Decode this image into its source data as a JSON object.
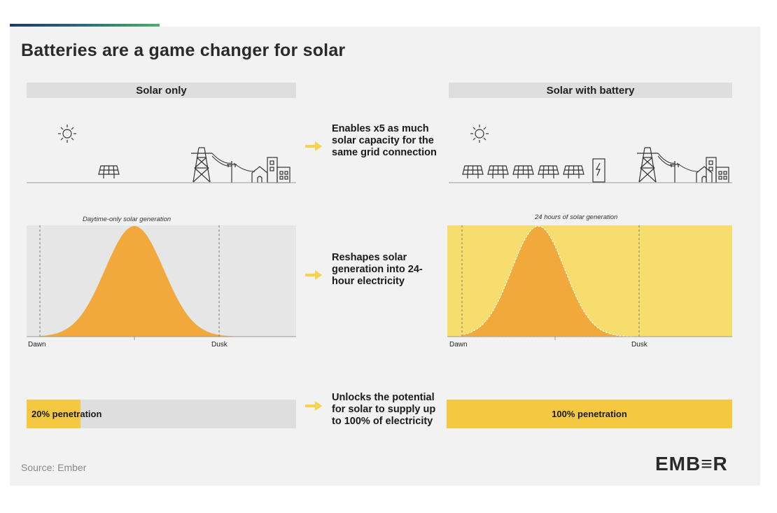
{
  "title": "Batteries are a game changer for solar",
  "columns": {
    "left": "Solar only",
    "right": "Solar with battery"
  },
  "benefits": [
    "Enables x5 as much solar capacity for the same grid connection",
    "Reshapes solar generation into 24-hour electricity",
    "Unlocks the potential for solar to supply up to 100% of electricity"
  ],
  "charts": {
    "left": {
      "caption": "Daytime-only solar generation",
      "x_labels": [
        "Dawn",
        "Dusk"
      ]
    },
    "right": {
      "caption": "24 hours of solar generation",
      "x_labels": [
        "Dawn",
        "Dusk"
      ]
    }
  },
  "penetration": {
    "left": {
      "label": "20% penetration",
      "value": 0.2
    },
    "right": {
      "label": "100% penetration",
      "value": 1.0
    }
  },
  "source": "Source: Ember",
  "logo": "EMB≡R",
  "colors": {
    "solar_orange": "#f2a93b",
    "battery_yellow": "#f7dd6e",
    "bar_yellow": "#f5c842",
    "arrow_yellow": "#f7d24a",
    "chart_bg": "#e6e6e6",
    "header_bg": "#dedede"
  },
  "icons": [
    "sun-icon",
    "solar-panel-icon",
    "transmission-tower-icon",
    "power-pole-icon",
    "house-icon",
    "building-icon",
    "battery-icon"
  ]
}
